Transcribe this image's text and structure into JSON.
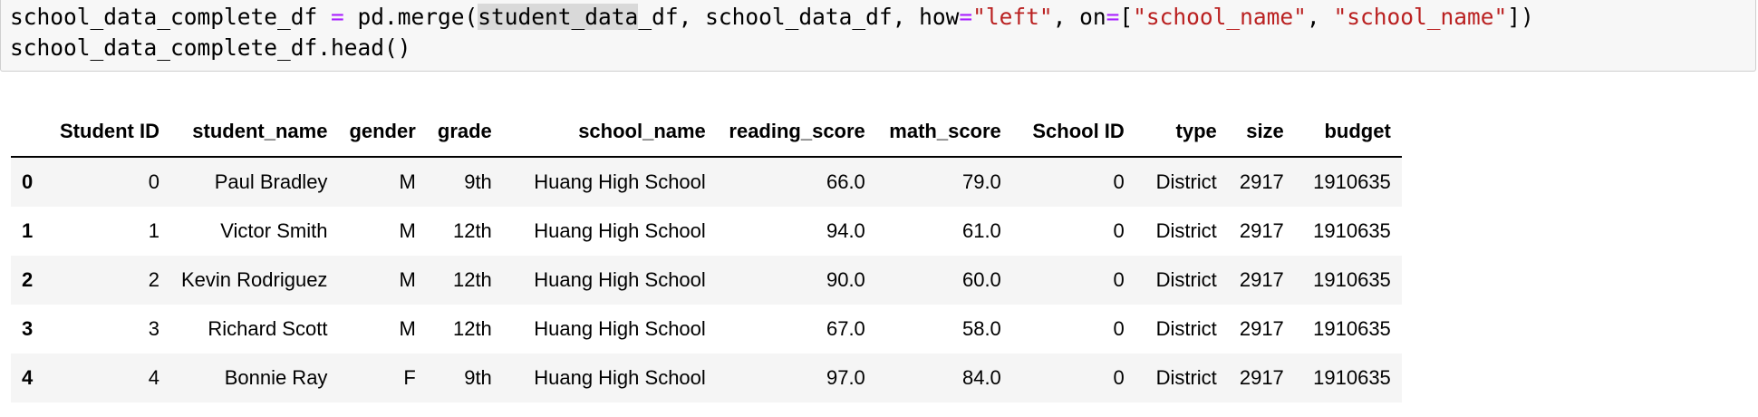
{
  "code_cell": {
    "line1": {
      "t1": "school_data_complete_df ",
      "t2": "=",
      "t3": " pd.merge(",
      "t4": "student_data",
      "t5": "_df, school_data_df, how",
      "t6": "=",
      "t7": "\"left\"",
      "t8": ", on",
      "t9": "=",
      "t10": "[",
      "t11": "\"school_name\"",
      "t12": ", ",
      "t13": "\"school_name\"",
      "t14": "])"
    },
    "line2": "school_data_complete_df.head()"
  },
  "output_table": {
    "columns": [
      "",
      "Student ID",
      "student_name",
      "gender",
      "grade",
      "school_name",
      "reading_score",
      "math_score",
      "School ID",
      "type",
      "size",
      "budget"
    ],
    "rows": [
      {
        "index": "0",
        "cells": [
          "0",
          "Paul Bradley",
          "M",
          "9th",
          "Huang High School",
          "66.0",
          "79.0",
          "0",
          "District",
          "2917",
          "1910635"
        ]
      },
      {
        "index": "1",
        "cells": [
          "1",
          "Victor Smith",
          "M",
          "12th",
          "Huang High School",
          "94.0",
          "61.0",
          "0",
          "District",
          "2917",
          "1910635"
        ]
      },
      {
        "index": "2",
        "cells": [
          "2",
          "Kevin Rodriguez",
          "M",
          "12th",
          "Huang High School",
          "90.0",
          "60.0",
          "0",
          "District",
          "2917",
          "1910635"
        ]
      },
      {
        "index": "3",
        "cells": [
          "3",
          "Richard Scott",
          "M",
          "12th",
          "Huang High School",
          "67.0",
          "58.0",
          "0",
          "District",
          "2917",
          "1910635"
        ]
      },
      {
        "index": "4",
        "cells": [
          "4",
          "Bonnie Ray",
          "F",
          "9th",
          "Huang High School",
          "97.0",
          "84.0",
          "0",
          "District",
          "2917",
          "1910635"
        ]
      }
    ]
  },
  "colors": {
    "code_background": "#f7f7f7",
    "operator": "#aa22ff",
    "string": "#ba2121",
    "highlight": "#d9d9d9",
    "row_stripe": "#f5f5f5"
  }
}
